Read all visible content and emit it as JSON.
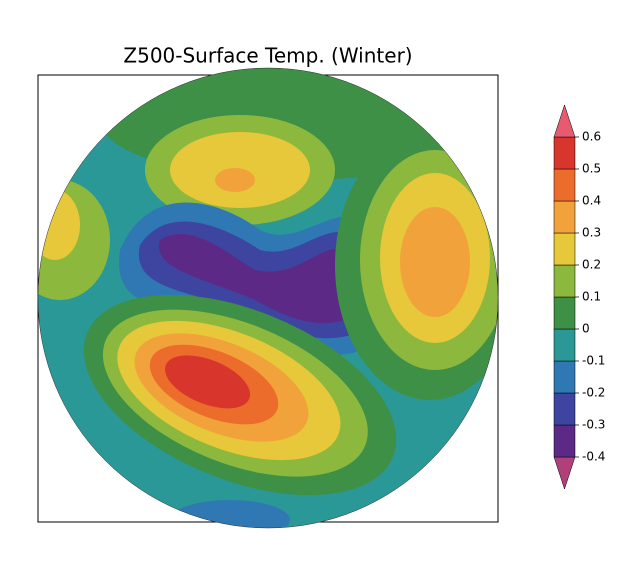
{
  "title": "Z500-Surface Temp. (Winter)",
  "colorbar": {
    "ticks": [
      -0.4,
      -0.3,
      -0.2,
      -0.1,
      0,
      0.1,
      0.2,
      0.3,
      0.4,
      0.5,
      0.6
    ],
    "colors": [
      "#b0407a",
      "#5c2a86",
      "#3d45a0",
      "#2f78b4",
      "#2a9896",
      "#3e9046",
      "#8db83e",
      "#e6c83a",
      "#f2a23a",
      "#ec6c2c",
      "#d8352c",
      "#e85a70"
    ]
  }
}
